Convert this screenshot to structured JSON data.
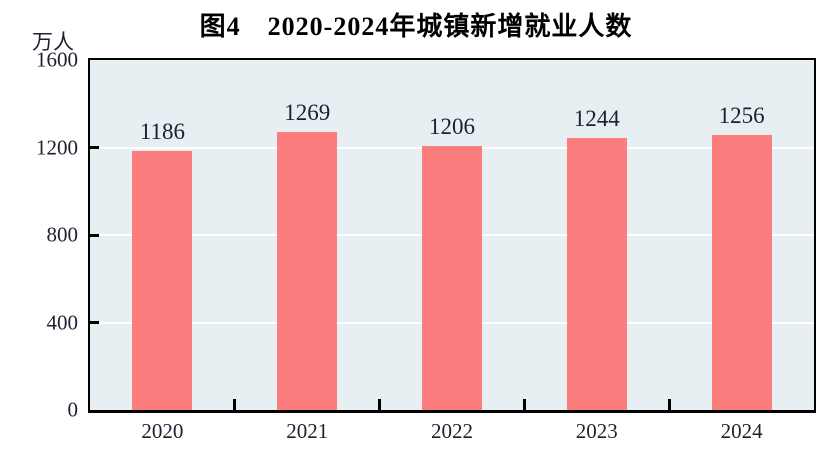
{
  "figure": {
    "title": "图4　2020-2024年城镇新增就业人数",
    "y_axis_unit": "万人"
  },
  "colors": {
    "bar": "#fb7d7d",
    "plot_background": "#e8eff2",
    "axis_border": "#000000",
    "gridline": "#ffffff",
    "text": "#1c2130",
    "page_background": "#ffffff"
  },
  "chart_data": {
    "type": "bar",
    "title": "图4　2020-2024年城镇新增就业人数",
    "unit": "万人",
    "categories": [
      "2020",
      "2021",
      "2022",
      "2023",
      "2024"
    ],
    "values": [
      1186,
      1269,
      1206,
      1244,
      1256
    ],
    "xlabel": "",
    "ylabel": "万人",
    "ylim": [
      0,
      1600
    ],
    "yticks": [
      0,
      400,
      800,
      1200,
      1600
    ],
    "gridlines": [
      400,
      800,
      1200
    ],
    "grid": true,
    "legend": false,
    "bar_value_labels": true
  }
}
